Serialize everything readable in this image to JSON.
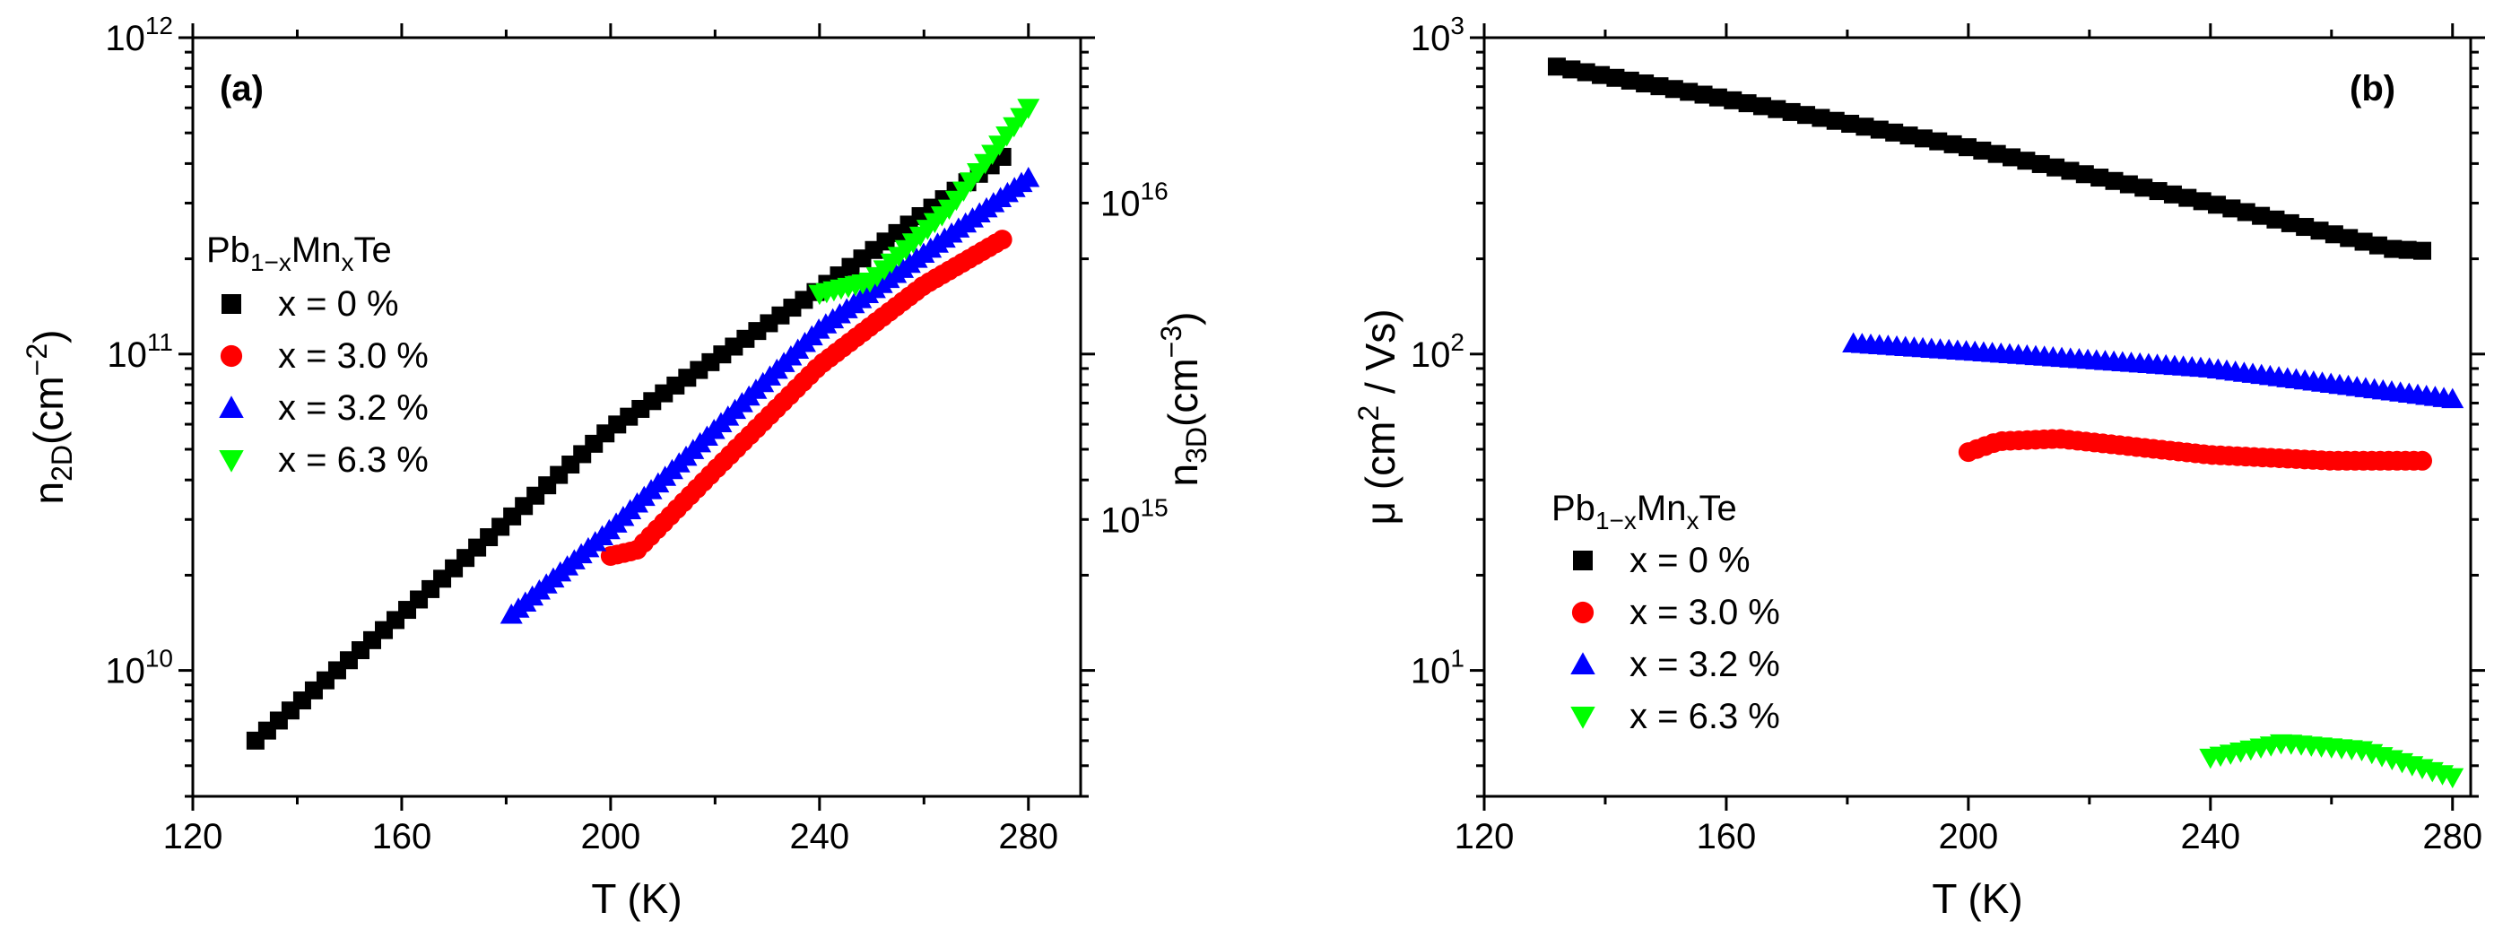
{
  "chart_data": [
    {
      "id": "a",
      "type": "scatter",
      "panel_label": "(a)",
      "xlabel": "T (K)",
      "ylabel": {
        "base": "n",
        "sub": "2D",
        "unit": "(cm",
        "sup": "−2",
        "close": ")"
      },
      "ylabel_right": {
        "base": "n",
        "sub": "3D",
        "unit": "(cm",
        "sup": "−3",
        "close": ")"
      },
      "xlim": [
        120,
        290
      ],
      "ylim": [
        4000000000.0,
        1000000000000.0
      ],
      "yscale": "log",
      "xticks": [
        120,
        160,
        200,
        240,
        280
      ],
      "yticks": [
        {
          "value": 10000000000.0,
          "mant": "10",
          "exp": "10"
        },
        {
          "value": 100000000000.0,
          "mant": "10",
          "exp": "11"
        },
        {
          "value": 1000000000000.0,
          "mant": "10",
          "exp": "12"
        }
      ],
      "right_yticks": [
        {
          "value": 30000000000.0,
          "mant": "10",
          "exp": "15"
        },
        {
          "value": 300000000000.0,
          "mant": "10",
          "exp": "16"
        }
      ],
      "legend": {
        "position": "upper-left",
        "title": {
          "base": "Pb",
          "sub1": "1−x",
          "mid": "Mn",
          "sub2": "x",
          "end": "Te"
        }
      },
      "series": [
        {
          "name": "x = 0 %",
          "marker": "square",
          "color": "#000000",
          "x_start": 132,
          "x_end": 275,
          "n": 65,
          "curve": [
            [
              132,
              6000000000.0
            ],
            [
              160,
              15000000000.0
            ],
            [
              200,
              58000000000.0
            ],
            [
              240,
              160000000000.0
            ],
            [
              275,
              420000000000.0
            ]
          ]
        },
        {
          "name": "x = 3.0 %",
          "marker": "circle",
          "color": "#ff0000",
          "x_start": 200,
          "x_end": 275,
          "n": 60,
          "curve": [
            [
              200,
              23000000000.0
            ],
            [
              205,
              24000000000.0
            ],
            [
              220,
              43000000000.0
            ],
            [
              240,
              92000000000.0
            ],
            [
              260,
              165000000000.0
            ],
            [
              275,
              230000000000.0
            ]
          ]
        },
        {
          "name": "x = 3.2 %",
          "marker": "triangle-up",
          "color": "#0000ff",
          "x_start": 181,
          "x_end": 280,
          "n": 75,
          "curve": [
            [
              181,
              15000000000.0
            ],
            [
              200,
              28000000000.0
            ],
            [
              240,
              120000000000.0
            ],
            [
              280,
              360000000000.0
            ]
          ]
        },
        {
          "name": "x = 6.3 %",
          "marker": "triangle-down",
          "color": "#00ff00",
          "x_start": 240,
          "x_end": 280,
          "n": 30,
          "curve": [
            [
              240,
              155000000000.0
            ],
            [
              250,
              170000000000.0
            ],
            [
              265,
              290000000000.0
            ],
            [
              280,
              600000000000.0
            ]
          ]
        }
      ]
    },
    {
      "id": "b",
      "type": "scatter",
      "panel_label": "(b)",
      "xlabel": "T (K)",
      "ylabel": {
        "base": "μ (cm",
        "sup": "2",
        "end": " / Vs)"
      },
      "xlim": [
        120,
        283
      ],
      "ylim": [
        4,
        1000
      ],
      "yscale": "log",
      "xticks": [
        120,
        160,
        200,
        240,
        280
      ],
      "yticks": [
        {
          "value": 10,
          "mant": "10",
          "exp": "1"
        },
        {
          "value": 100,
          "mant": "10",
          "exp": "2"
        },
        {
          "value": 1000,
          "mant": "10",
          "exp": "3"
        }
      ],
      "legend": {
        "position": "lower-left",
        "title": {
          "base": "Pb",
          "sub1": "1−x",
          "mid": "Mn",
          "sub2": "x",
          "end": "Te"
        }
      },
      "series": [
        {
          "name": "x = 0 %",
          "marker": "square",
          "color": "#000000",
          "x_start": 132,
          "x_end": 275,
          "n": 60,
          "curve": [
            [
              132,
              810
            ],
            [
              160,
              640
            ],
            [
              200,
              450
            ],
            [
              240,
              300
            ],
            [
              270,
              215
            ],
            [
              275,
              212
            ]
          ]
        },
        {
          "name": "x = 3.0 %",
          "marker": "circle",
          "color": "#ff0000",
          "x_start": 200,
          "x_end": 275,
          "n": 55,
          "curve": [
            [
              200,
              49
            ],
            [
              205,
              53
            ],
            [
              215,
              54
            ],
            [
              240,
              48
            ],
            [
              260,
              46
            ],
            [
              275,
              46
            ]
          ]
        },
        {
          "name": "x = 3.2 %",
          "marker": "triangle-up",
          "color": "#0000ff",
          "x_start": 181,
          "x_end": 280,
          "n": 70,
          "curve": [
            [
              181,
              108
            ],
            [
              200,
              102
            ],
            [
              240,
              90
            ],
            [
              280,
              72
            ]
          ]
        },
        {
          "name": "x = 6.3 %",
          "marker": "triangle-down",
          "color": "#00ff00",
          "x_start": 240,
          "x_end": 280,
          "n": 25,
          "curve": [
            [
              240,
              5.3
            ],
            [
              252,
              5.9
            ],
            [
              265,
              5.6
            ],
            [
              280,
              4.6
            ]
          ]
        }
      ]
    }
  ]
}
